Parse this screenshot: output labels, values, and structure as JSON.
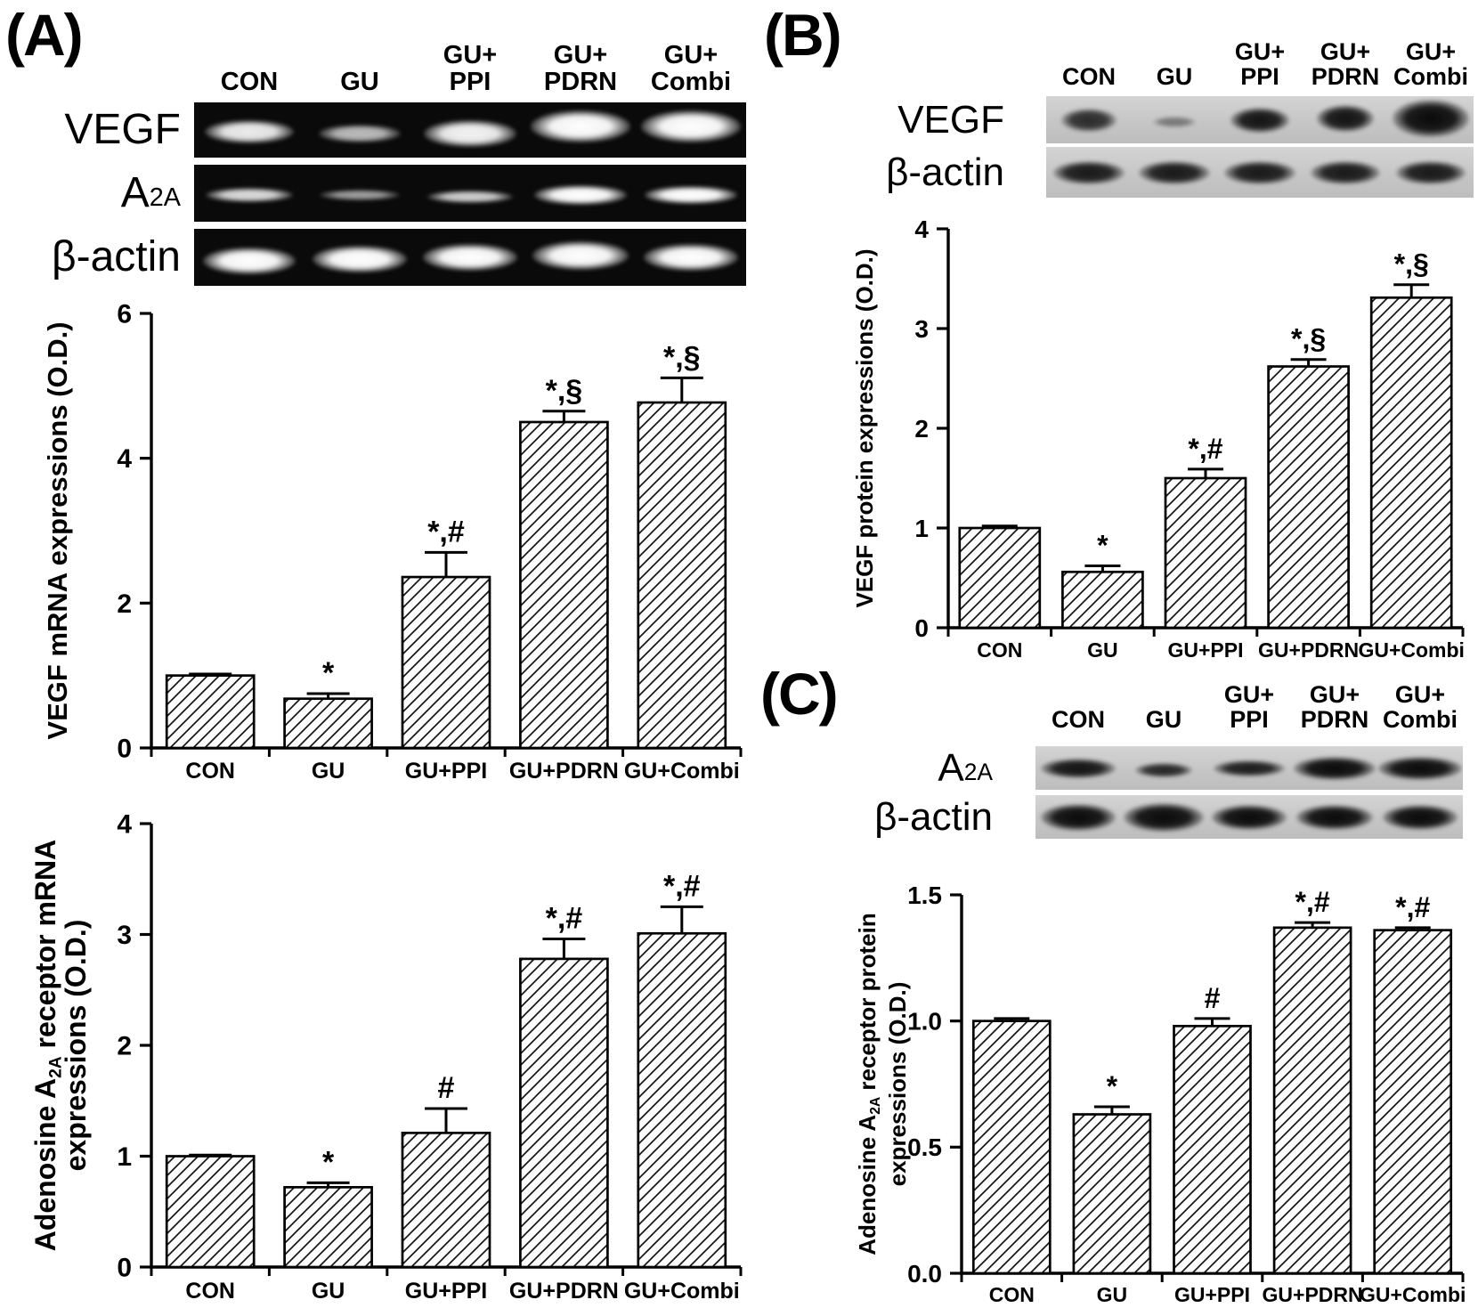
{
  "panels": {
    "a": {
      "label": "(A)",
      "gel": {
        "lane_headers": [
          "CON",
          "GU",
          "GU+\nPPI",
          "GU+\nPDRN",
          "GU+\nCombi"
        ],
        "rows": [
          {
            "label": "VEGF",
            "bands": [
              [
                100,
                26,
                0.92,
                2
              ],
              [
                92,
                20,
                0.72,
                4
              ],
              [
                104,
                30,
                0.95,
                4
              ],
              [
                112,
                36,
                1,
                -4
              ],
              [
                112,
                36,
                1,
                -4
              ]
            ]
          },
          {
            "label": "A_{2A}",
            "bands": [
              [
                98,
                16,
                0.85,
                2
              ],
              [
                90,
                12,
                0.6,
                2
              ],
              [
                96,
                14,
                0.8,
                4
              ],
              [
                104,
                22,
                1,
                2
              ],
              [
                104,
                20,
                1,
                2
              ]
            ]
          },
          {
            "label": "β-actin",
            "bands": [
              [
                104,
                30,
                1,
                4
              ],
              [
                106,
                30,
                1,
                2
              ],
              [
                106,
                30,
                1,
                0
              ],
              [
                108,
                32,
                1,
                -2
              ],
              [
                106,
                30,
                1,
                0
              ]
            ]
          }
        ]
      }
    },
    "b": {
      "label": "(B)",
      "blot": {
        "lane_headers": [
          "CON",
          "GU",
          "GU+\nPPI",
          "GU+\nPDRN",
          "GU+\nCombi"
        ],
        "rows": [
          {
            "label": "VEGF",
            "bands": [
              [
                62,
                26,
                0.82,
                0
              ],
              [
                48,
                12,
                0.42,
                2
              ],
              [
                66,
                28,
                0.95,
                0
              ],
              [
                64,
                30,
                0.95,
                -2
              ],
              [
                86,
                42,
                1,
                -2
              ]
            ]
          },
          {
            "label": "β-actin",
            "bands": [
              [
                80,
                26,
                0.92,
                0
              ],
              [
                80,
                26,
                0.92,
                0
              ],
              [
                80,
                26,
                0.92,
                0
              ],
              [
                78,
                26,
                0.92,
                0
              ],
              [
                78,
                26,
                0.92,
                0
              ]
            ]
          }
        ]
      }
    },
    "c": {
      "label": "(C)",
      "blot": {
        "lane_headers": [
          "CON",
          "GU",
          "GU+\nPPI",
          "GU+\nPDRN",
          "GU+\nCombi"
        ],
        "rows": [
          {
            "label": "A_{2A}",
            "bands": [
              [
                84,
                22,
                0.95,
                0
              ],
              [
                64,
                16,
                0.85,
                2
              ],
              [
                80,
                18,
                0.9,
                0
              ],
              [
                92,
                26,
                1,
                0
              ],
              [
                94,
                26,
                1,
                0
              ]
            ]
          },
          {
            "label": "β-actin",
            "bands": [
              [
                84,
                30,
                1,
                0
              ],
              [
                90,
                32,
                1,
                0
              ],
              [
                84,
                28,
                1,
                0
              ],
              [
                86,
                28,
                1,
                0
              ],
              [
                84,
                28,
                1,
                0
              ]
            ]
          }
        ]
      }
    }
  },
  "chart_data": [
    {
      "id": "vegf-mrna",
      "type": "bar",
      "title": "",
      "xlabel": "",
      "ylabel": "VEGF mRNA expressions (O.D.)",
      "ylabel_lines": [
        "VEGF mRNA expressions (O.D.)"
      ],
      "categories": [
        "CON",
        "GU",
        "GU+PPI",
        "GU+PDRN",
        "GU+Combi"
      ],
      "values": [
        1.0,
        0.68,
        2.36,
        4.5,
        4.77
      ],
      "errors": [
        0.02,
        0.07,
        0.34,
        0.15,
        0.34
      ],
      "annotations": [
        "",
        "*",
        "*,#",
        "*,§",
        "*,§"
      ],
      "ylim": [
        0,
        6
      ],
      "yticks": [
        "0",
        "2",
        "4",
        "6"
      ],
      "grid": false,
      "legend": null,
      "bar_fill": "diagonal-hatch",
      "error_bars": true
    },
    {
      "id": "a2a-mrna",
      "type": "bar",
      "title": "",
      "xlabel": "",
      "ylabel": "Adenosine A2A receptor mRNA expressions (O.D.)",
      "ylabel_lines": [
        "Adenosine A_{2A} receptor mRNA",
        "expressions (O.D.)"
      ],
      "categories": [
        "CON",
        "GU",
        "GU+PPI",
        "GU+PDRN",
        "GU+Combi"
      ],
      "values": [
        1.0,
        0.72,
        1.21,
        2.78,
        3.01
      ],
      "errors": [
        0.01,
        0.04,
        0.22,
        0.18,
        0.24
      ],
      "annotations": [
        "",
        "*",
        "#",
        "*,#",
        "*,#"
      ],
      "ylim": [
        0,
        4
      ],
      "yticks": [
        "0",
        "1",
        "2",
        "3",
        "4"
      ],
      "grid": false,
      "legend": null,
      "bar_fill": "diagonal-hatch",
      "error_bars": true
    },
    {
      "id": "vegf-protein",
      "type": "bar",
      "title": "",
      "xlabel": "",
      "ylabel": "VEGF protein expressions (O.D.)",
      "ylabel_lines": [
        "VEGF protein expressions (O.D.)"
      ],
      "categories": [
        "CON",
        "GU",
        "GU+PPI",
        "GU+PDRN",
        "GU+Combi"
      ],
      "values": [
        1.0,
        0.56,
        1.5,
        2.62,
        3.31
      ],
      "errors": [
        0.02,
        0.06,
        0.09,
        0.07,
        0.13
      ],
      "annotations": [
        "",
        "*",
        "*,#",
        "*,§",
        "*,§"
      ],
      "ylim": [
        0,
        4
      ],
      "yticks": [
        "0",
        "1",
        "2",
        "3",
        "4"
      ],
      "grid": false,
      "legend": null,
      "bar_fill": "diagonal-hatch",
      "error_bars": true
    },
    {
      "id": "a2a-protein",
      "type": "bar",
      "title": "",
      "xlabel": "",
      "ylabel": "Adenosine A2A receptor protein expressions (O.D.)",
      "ylabel_lines": [
        "Adenosine A_{2A} receptor protein",
        "expressions (O.D.)"
      ],
      "categories": [
        "CON",
        "GU",
        "GU+PPI",
        "GU+PDRN",
        "GU+Combi"
      ],
      "values": [
        1.0,
        0.63,
        0.98,
        1.37,
        1.36
      ],
      "errors": [
        0.01,
        0.03,
        0.03,
        0.02,
        0.01
      ],
      "annotations": [
        "",
        "*",
        "#",
        "*,#",
        "*,#"
      ],
      "ylim": [
        0,
        1.5
      ],
      "yticks": [
        "0.0",
        "0.5",
        "1.0",
        "1.5"
      ],
      "grid": false,
      "legend": null,
      "bar_fill": "diagonal-hatch",
      "error_bars": true
    }
  ]
}
